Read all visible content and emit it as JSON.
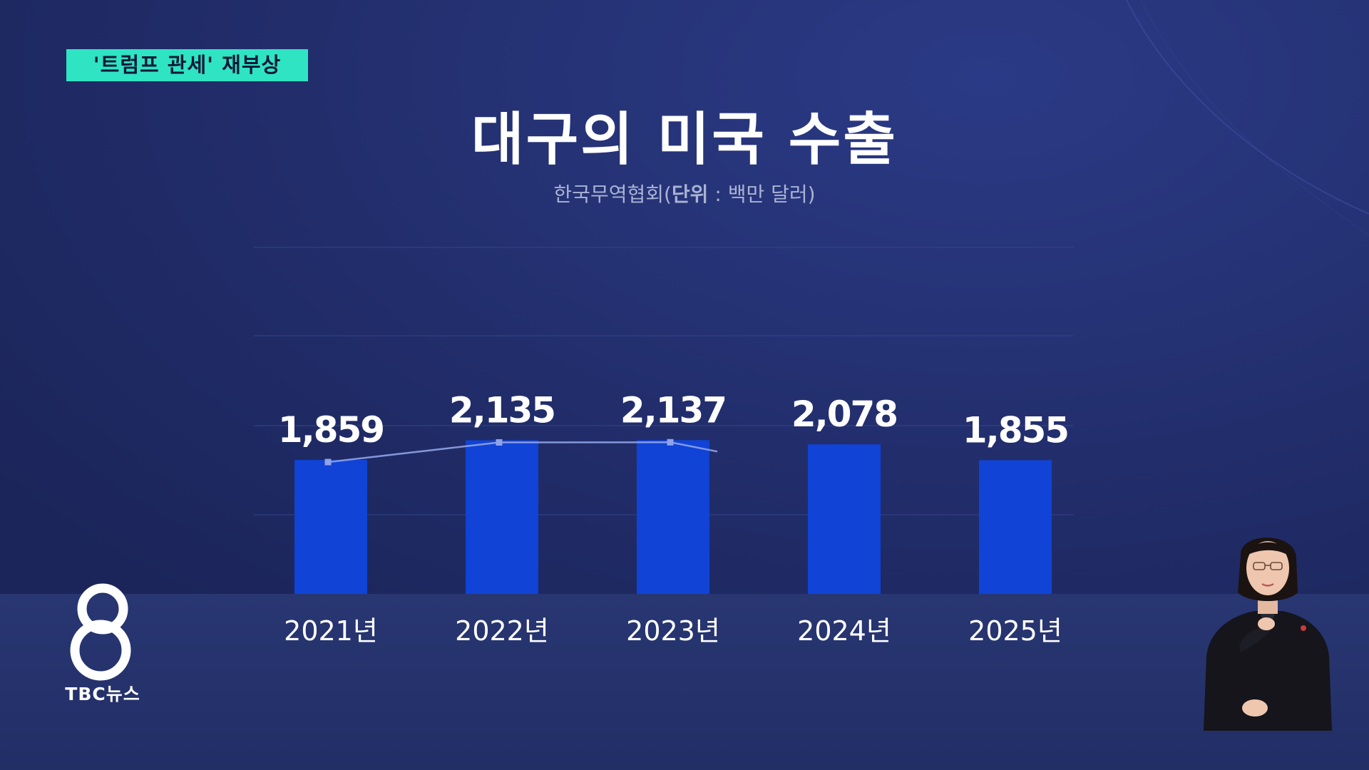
{
  "broadcast": {
    "topic_tag": "'트럼프 관세' 재부상",
    "logo_label": "TBC뉴스",
    "logo_icon": "eight-logo-icon",
    "interpreter": "sign-language-interpreter"
  },
  "colors": {
    "background": "#222e68",
    "bar": "#1043d6",
    "trend_line": "#8fa3e8",
    "tag": "#2fe4c2"
  },
  "chart_data": {
    "type": "bar",
    "title": "대구의 미국 수출",
    "source": "한국무역협회",
    "unit_label": "단위",
    "unit_value": "백만 달러",
    "categories": [
      "2021년",
      "2022년",
      "2023년",
      "2024년",
      "2025년"
    ],
    "values": [
      1859,
      2135,
      2137,
      2078,
      1855
    ],
    "value_labels": [
      "1,859",
      "2,135",
      "2,137",
      "2,078",
      "1,855"
    ],
    "trend_line_covers": [
      "2021년",
      "2022년",
      "2023년"
    ],
    "grid": true,
    "legend": "none"
  }
}
